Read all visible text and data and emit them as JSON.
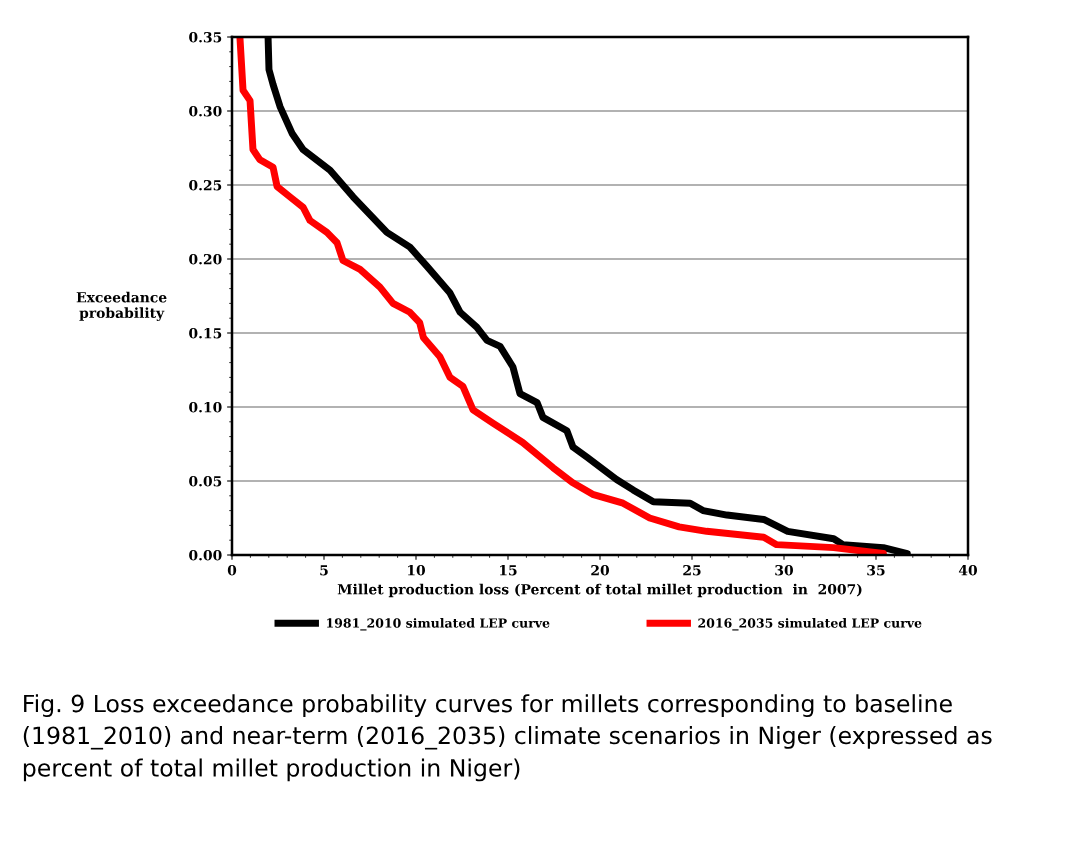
{
  "chart_data": {
    "type": "line",
    "xlabel": "Millet production loss (Percent of total millet production  in  2007)",
    "ylabel": "Exceedance\nprobability",
    "xlim": [
      0,
      40
    ],
    "xticks": [
      0,
      5,
      10,
      15,
      20,
      25,
      30,
      35,
      40
    ],
    "ylim": [
      0,
      0.35
    ],
    "yticks": [
      {
        "value": 0,
        "label": "0.00"
      },
      {
        "value": 0.05,
        "label": "0.05"
      },
      {
        "value": 0.1,
        "label": "0.10"
      },
      {
        "value": 0.15,
        "label": "0.15"
      },
      {
        "value": 0.2,
        "label": "0.20"
      },
      {
        "value": 0.25,
        "label": "0.25"
      },
      {
        "value": 0.3,
        "label": "0.30"
      },
      {
        "value": 0.35,
        "label": "0.35"
      }
    ],
    "grid": "y",
    "legend": "bottom",
    "marker": "none",
    "line_style": "solid",
    "series": [
      {
        "name": "1981_2010 simulated LEP curve",
        "color": "#000000",
        "x": [
          1.96,
          2.01,
          2.23,
          2.61,
          3.26,
          3.86,
          5.33,
          6.58,
          8.42,
          9.67,
          10.6,
          11.85,
          12.4,
          13.3,
          13.86,
          14.57,
          15.27,
          15.65,
          16.58,
          16.9,
          18.2,
          18.53,
          19.3,
          20.9,
          21.8,
          22.9,
          24.9,
          25.6,
          26.9,
          28.9,
          30.2,
          32.7,
          33.2,
          35.4,
          36.7
        ],
        "values": [
          0.35,
          0.328,
          0.318,
          0.303,
          0.285,
          0.274,
          0.26,
          0.242,
          0.218,
          0.208,
          0.195,
          0.177,
          0.164,
          0.154,
          0.145,
          0.141,
          0.127,
          0.109,
          0.103,
          0.093,
          0.084,
          0.073,
          0.066,
          0.051,
          0.044,
          0.036,
          0.035,
          0.03,
          0.027,
          0.024,
          0.016,
          0.011,
          0.007,
          0.005,
          0.001
        ]
      },
      {
        "name": "2016_2035 simulated LEP curve",
        "color": "#ff0000",
        "x": [
          0.43,
          0.6,
          0.98,
          1.14,
          1.52,
          2.23,
          2.45,
          3.15,
          3.86,
          4.24,
          5.16,
          5.71,
          6.03,
          6.96,
          8.04,
          8.75,
          9.67,
          10.2,
          10.4,
          11.3,
          11.85,
          12.55,
          13.1,
          14.2,
          15.8,
          17.45,
          18.5,
          19.6,
          21.25,
          22.7,
          24.3,
          25.8,
          28.9,
          29.6,
          32.7,
          35.4
        ],
        "values": [
          0.35,
          0.314,
          0.307,
          0.274,
          0.267,
          0.262,
          0.249,
          0.242,
          0.235,
          0.226,
          0.218,
          0.211,
          0.199,
          0.193,
          0.181,
          0.17,
          0.164,
          0.157,
          0.147,
          0.134,
          0.12,
          0.114,
          0.098,
          0.089,
          0.076,
          0.059,
          0.049,
          0.041,
          0.035,
          0.025,
          0.019,
          0.016,
          0.012,
          0.007,
          0.005,
          0.001
        ]
      }
    ],
    "annotations": [
      "Fig. 9 Loss exceedance probability curves for millets corresponding to baseline (1981_2010) and near-term (2016_2035) climate scenarios in Niger (expressed as percent of total millet production in Niger)"
    ]
  }
}
